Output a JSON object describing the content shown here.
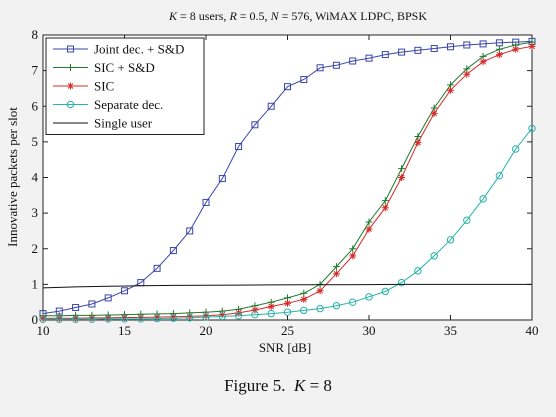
{
  "chart_data": {
    "type": "line",
    "title": "K = 8 users, R = 0.5, N = 576, WiMAX LDPC, BPSK",
    "title_parts": {
      "k_sym": "K",
      "k_rest": " = 8 users, ",
      "r_sym": "R",
      "r_rest": " = 0.5, ",
      "n_sym": "N",
      "n_rest": " = 576, WiMAX LDPC, BPSK"
    },
    "xlabel": "SNR [dB]",
    "ylabel": "Innovative packets per slot",
    "xlim": [
      10,
      40
    ],
    "ylim": [
      0,
      8
    ],
    "xticks": [
      10,
      15,
      20,
      25,
      30,
      35,
      40
    ],
    "yticks": [
      0,
      1,
      2,
      3,
      4,
      5,
      6,
      7,
      8
    ],
    "grid": false,
    "legend_position": "top-left",
    "series": [
      {
        "name": "Joint dec. + S&D",
        "color": "#3a45a8",
        "marker": "square",
        "x": [
          10,
          11,
          12,
          13,
          14,
          15,
          16,
          17,
          18,
          19,
          20,
          21,
          22,
          23,
          24,
          25,
          26,
          27,
          28,
          29,
          30,
          31,
          32,
          33,
          34,
          35,
          36,
          37,
          38,
          39,
          40
        ],
        "y": [
          0.18,
          0.25,
          0.35,
          0.45,
          0.62,
          0.82,
          1.05,
          1.45,
          1.95,
          2.5,
          3.3,
          3.97,
          4.87,
          5.48,
          6.0,
          6.55,
          6.75,
          7.08,
          7.15,
          7.27,
          7.35,
          7.45,
          7.52,
          7.57,
          7.62,
          7.67,
          7.72,
          7.75,
          7.78,
          7.8,
          7.82
        ]
      },
      {
        "name": "SIC + S&D",
        "color": "#1f7a2e",
        "marker": "plus",
        "x": [
          10,
          11,
          12,
          13,
          14,
          15,
          16,
          17,
          18,
          19,
          20,
          21,
          22,
          23,
          24,
          25,
          26,
          27,
          28,
          29,
          30,
          31,
          32,
          33,
          34,
          35,
          36,
          37,
          38,
          39,
          40
        ],
        "y": [
          0.12,
          0.12,
          0.13,
          0.13,
          0.14,
          0.15,
          0.16,
          0.17,
          0.18,
          0.2,
          0.22,
          0.25,
          0.3,
          0.4,
          0.5,
          0.62,
          0.75,
          1.0,
          1.5,
          2.0,
          2.75,
          3.35,
          4.25,
          5.15,
          5.95,
          6.6,
          7.05,
          7.4,
          7.6,
          7.72,
          7.8
        ]
      },
      {
        "name": "SIC",
        "color": "#d42a2a",
        "marker": "star",
        "x": [
          10,
          11,
          12,
          13,
          14,
          15,
          16,
          17,
          18,
          19,
          20,
          21,
          22,
          23,
          24,
          25,
          26,
          27,
          28,
          29,
          30,
          31,
          32,
          33,
          34,
          35,
          36,
          37,
          38,
          39,
          40
        ],
        "y": [
          0.05,
          0.05,
          0.05,
          0.06,
          0.06,
          0.07,
          0.07,
          0.08,
          0.09,
          0.1,
          0.12,
          0.15,
          0.2,
          0.28,
          0.38,
          0.47,
          0.58,
          0.82,
          1.3,
          1.8,
          2.55,
          3.15,
          4.0,
          4.98,
          5.8,
          6.45,
          6.9,
          7.25,
          7.45,
          7.6,
          7.68
        ]
      },
      {
        "name": "Separate dec.",
        "color": "#27b3a8",
        "marker": "circle",
        "x": [
          10,
          11,
          12,
          13,
          14,
          15,
          16,
          17,
          18,
          19,
          20,
          21,
          22,
          23,
          24,
          25,
          26,
          27,
          28,
          29,
          30,
          31,
          32,
          33,
          34,
          35,
          36,
          37,
          38,
          39,
          40
        ],
        "y": [
          0.02,
          0.02,
          0.02,
          0.02,
          0.03,
          0.03,
          0.03,
          0.04,
          0.05,
          0.06,
          0.08,
          0.1,
          0.12,
          0.15,
          0.18,
          0.22,
          0.27,
          0.32,
          0.4,
          0.5,
          0.65,
          0.8,
          1.05,
          1.38,
          1.8,
          2.25,
          2.8,
          3.4,
          4.05,
          4.8,
          5.38
        ]
      },
      {
        "name": "Single user",
        "color": "#111111",
        "marker": "none",
        "x": [
          10,
          12,
          14,
          16,
          18,
          20,
          22,
          24,
          26,
          28,
          30,
          32,
          34,
          36,
          38,
          40
        ],
        "y": [
          0.9,
          0.93,
          0.95,
          0.96,
          0.97,
          0.975,
          0.98,
          0.985,
          0.99,
          0.99,
          0.995,
          1.0,
          1.0,
          1.0,
          1.0,
          1.0
        ]
      }
    ]
  },
  "caption": {
    "prefix": "Figure 5.",
    "math_k": "K",
    "math_rest": " = 8"
  }
}
